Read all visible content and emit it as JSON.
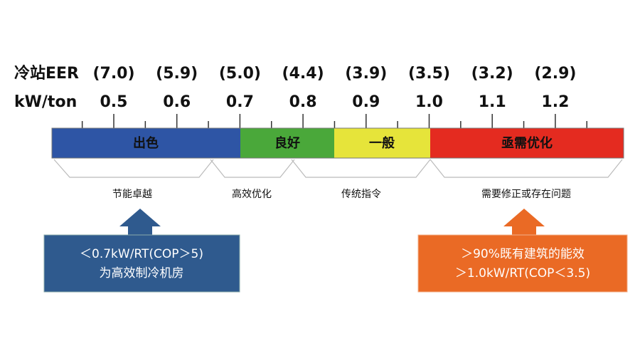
{
  "header": {
    "eer_label": "冷站EER",
    "kw_label": "kW/ton"
  },
  "eer_values": [
    "(7.0)",
    "(5.9)",
    "(5.0)",
    "(4.4)",
    "(3.9)",
    "(3.5)",
    "(3.2)",
    "(2.9)"
  ],
  "kw_values": [
    "0.5",
    "0.6",
    "0.7",
    "0.8",
    "0.9",
    "1.0",
    "1.1",
    "1.2"
  ],
  "segments": [
    "出色",
    "良好",
    "一般",
    "亟需优化"
  ],
  "groups": [
    "节能卓越",
    "高效优化",
    "传统指令",
    "需要修正或存在问题"
  ],
  "callouts": [
    {
      "lines": [
        "＜0.7kW/RT(COP＞5)",
        "为高效制冷机房"
      ]
    },
    {
      "lines": [
        "＞90%既有建筑的能效",
        "＞1.0kW/RT(COP＜3.5)"
      ]
    }
  ]
}
